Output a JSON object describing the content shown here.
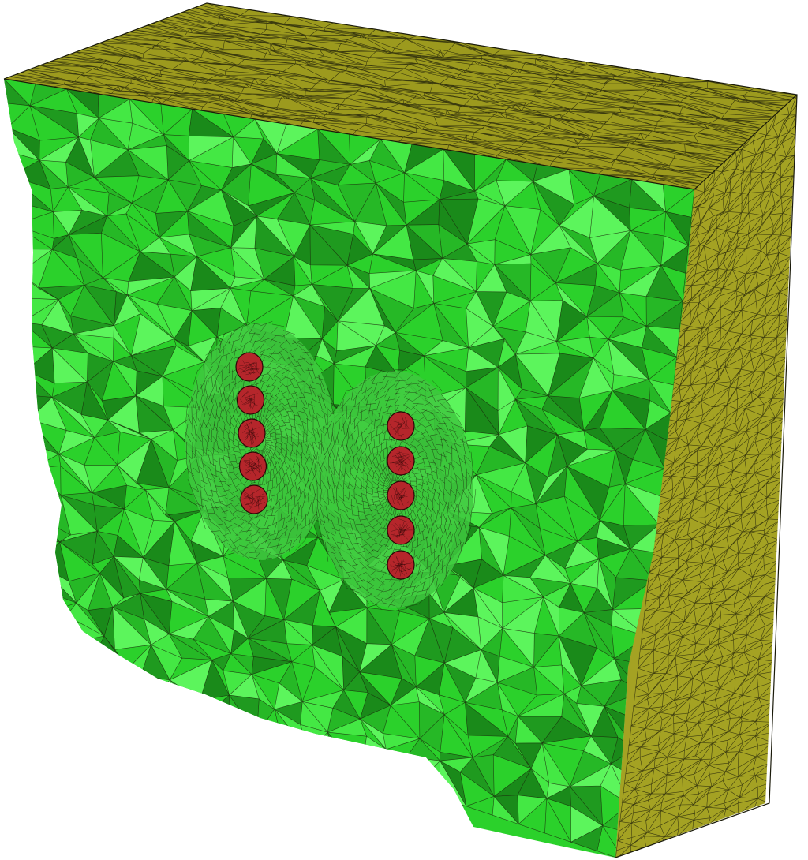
{
  "colors": {
    "background": "#ffffff",
    "top_face": "#9c9a1e",
    "side_face": "#a4a223",
    "mesh_line": "#1a1a0a",
    "section_green": "#2bd12b",
    "section_green_light": "#5cf55c",
    "section_green_dark": "#1f9a1f",
    "fine_mesh": "#3fc83f",
    "inclusion_red": "#b5262b",
    "inclusion_outline": "#2a0505"
  },
  "scene": {
    "object": "tetrahedral-mesh-cut-block",
    "faces": [
      "top-face",
      "right-face",
      "cut-section"
    ],
    "inclusion_columns": [
      {
        "name": "left-column",
        "count": 5
      },
      {
        "name": "right-column",
        "count": 5
      }
    ]
  }
}
